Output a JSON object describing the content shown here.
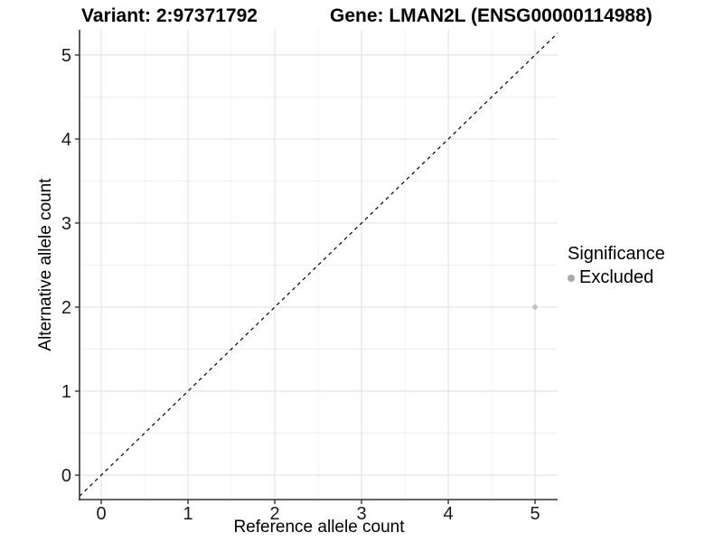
{
  "figure": {
    "title_left": "Variant: 2:97371792",
    "title_right": "Gene: LMAN2L (ENSG00000114988)"
  },
  "chart_data": {
    "type": "scatter",
    "title": "Variant: 2:97371792    Gene: LMAN2L (ENSG00000114988)",
    "xlabel": "Reference allele count",
    "ylabel": "Alternative allele count",
    "xlim": [
      -0.25,
      5.26
    ],
    "ylim": [
      -0.29,
      5.3
    ],
    "xticks": [
      0,
      1,
      2,
      3,
      4,
      5
    ],
    "yticks": [
      0,
      1,
      2,
      3,
      4,
      5
    ],
    "minor_gridline_step": 0.5,
    "grid": true,
    "series": [
      {
        "name": "Excluded",
        "color": "#c1c1c1",
        "point_radius": 2.8,
        "points": [
          {
            "x": 5,
            "y": 2
          }
        ]
      }
    ],
    "identity_line": {
      "equation": "y = x",
      "dashed": true,
      "color": "#000000"
    },
    "legend": {
      "title": "Significance",
      "position": "right",
      "entries": [
        {
          "label": "Excluded",
          "color": "#a9a9a9"
        }
      ]
    },
    "colors": {
      "background": "#ffffff",
      "grid_major": "#e4e4e4",
      "grid_minor": "#f1f1f1",
      "axis_line": "#333333",
      "tick_mark": "#333333",
      "tick_text": "#1a1a1a"
    }
  }
}
